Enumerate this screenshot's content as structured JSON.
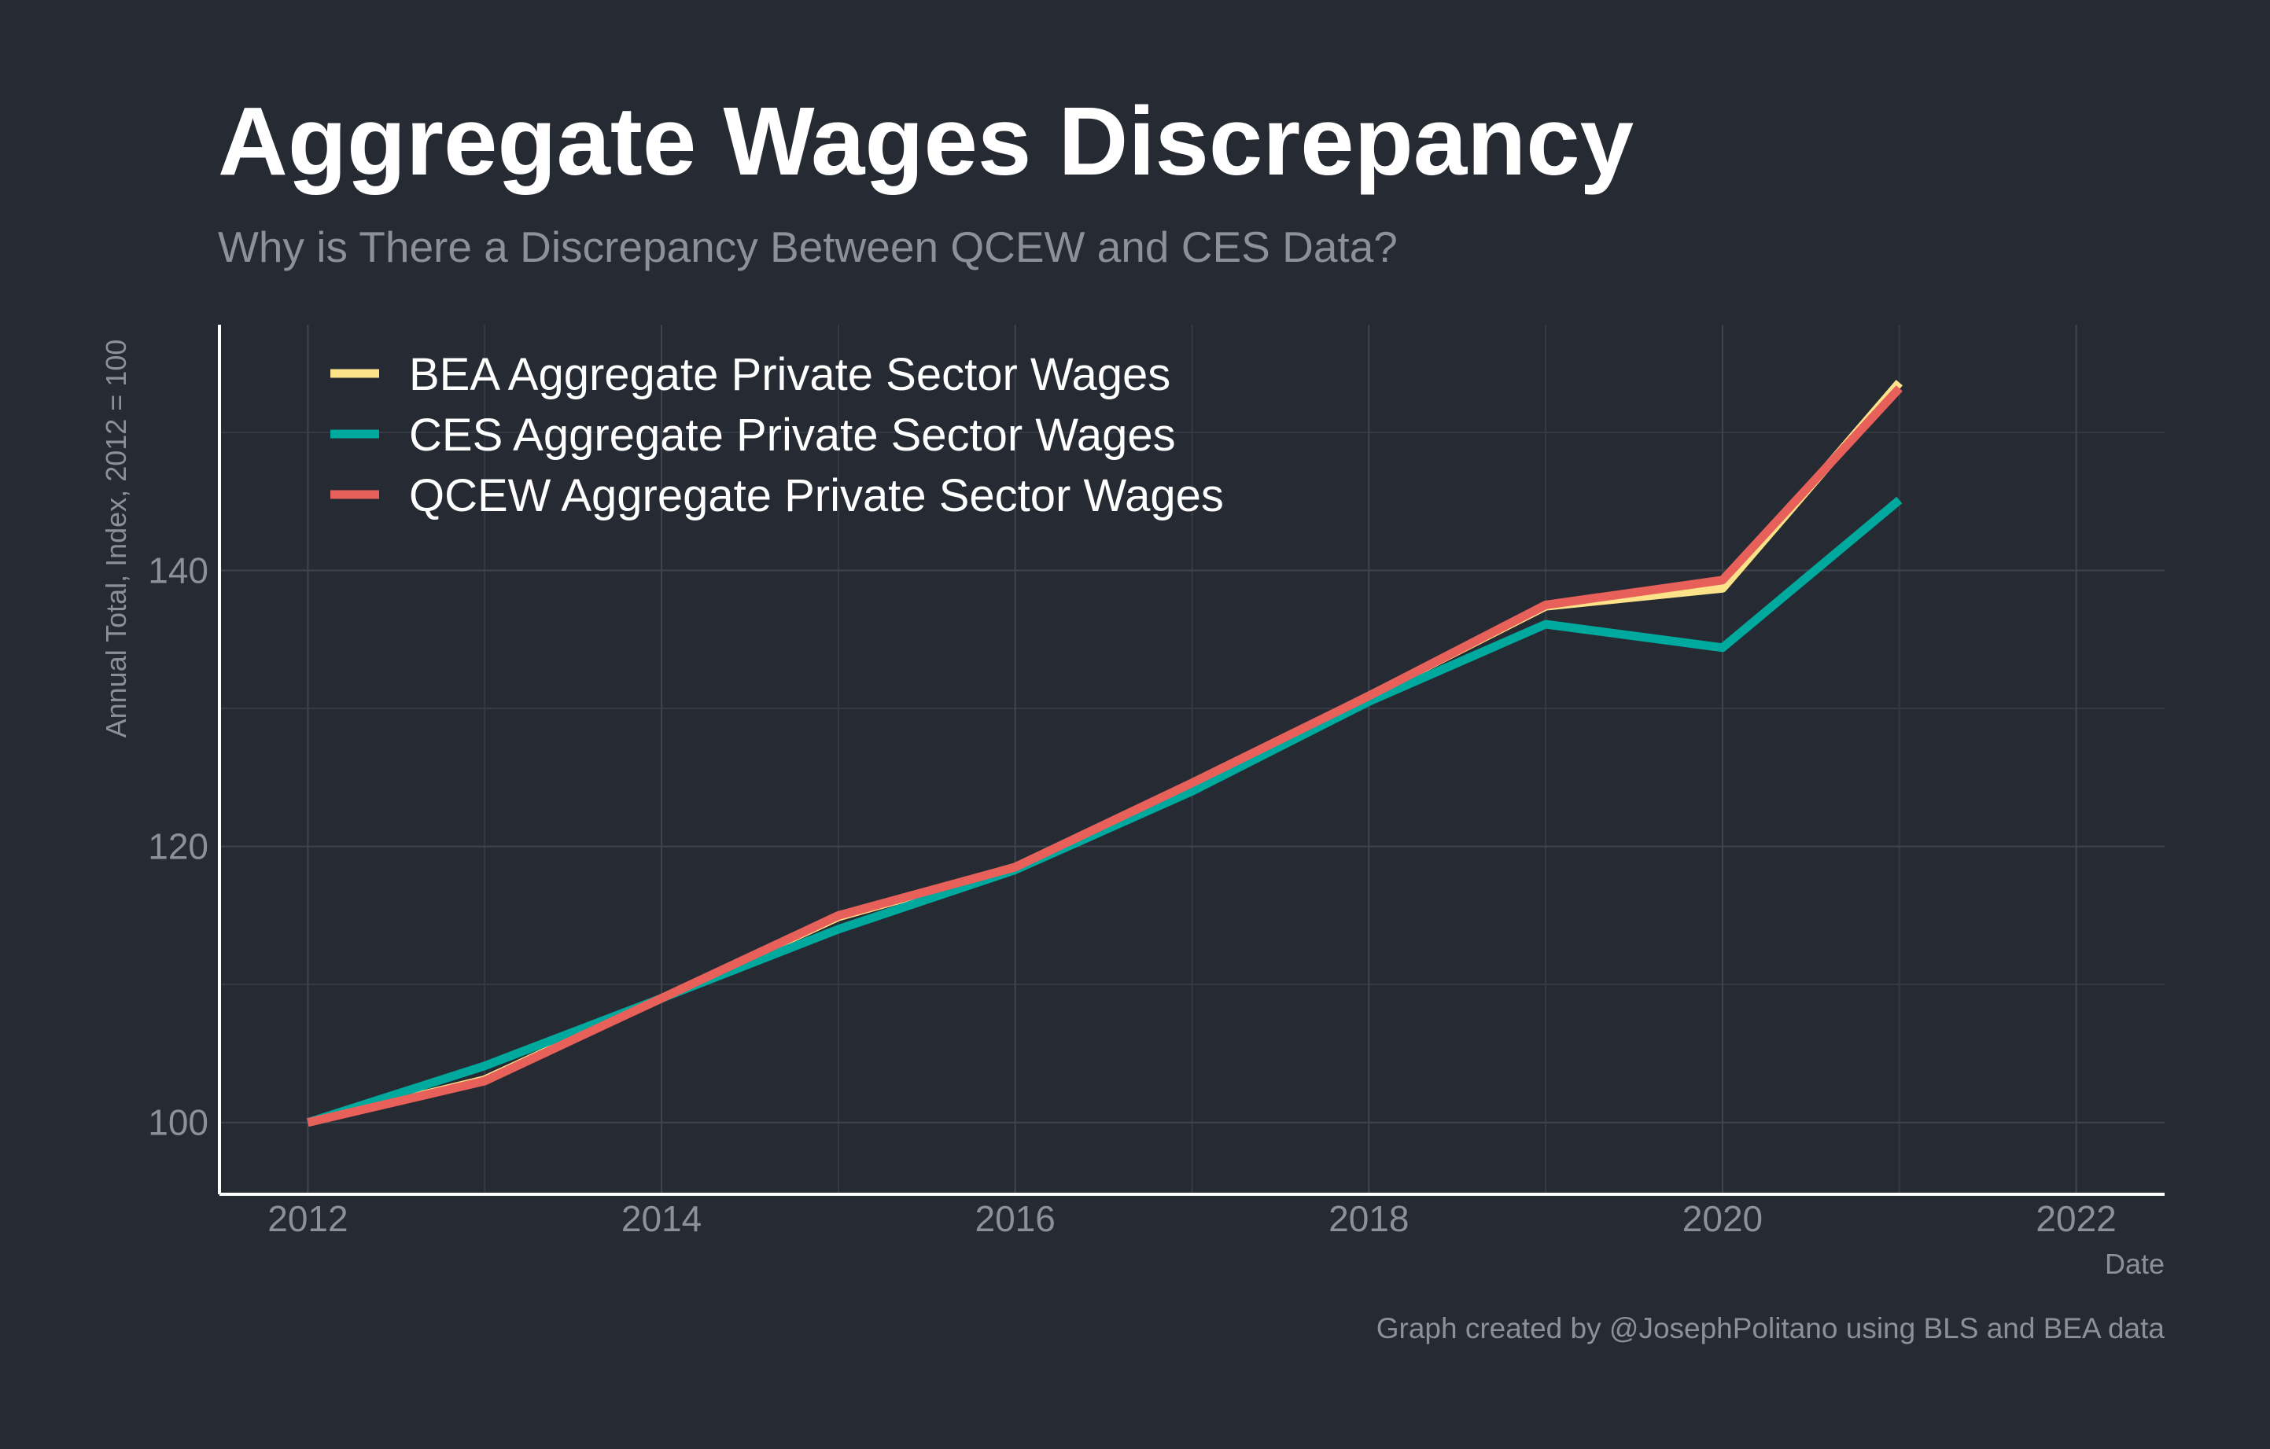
{
  "chart_data": {
    "type": "line",
    "title": "Aggregate Wages Discrepancy",
    "subtitle": "Why is There a Discrepancy Between QCEW and CES Data?",
    "ylabel": "Annual Total, Index, 2012 = 100",
    "xlabel": "Date",
    "caption": "Graph created by @JosephPolitano using BLS and BEA data",
    "xlim": [
      2011.5,
      2022.5
    ],
    "ylim": [
      94.8,
      157.8
    ],
    "x_ticks": [
      2012,
      2014,
      2016,
      2018,
      2020,
      2022
    ],
    "x_tick_labels": [
      "2012",
      "2014",
      "2016",
      "2018",
      "2020",
      "2022"
    ],
    "y_ticks": [
      100,
      120,
      140
    ],
    "y_tick_labels": [
      "100",
      "120",
      "140"
    ],
    "y_minor_gridlines": [
      110,
      130,
      150
    ],
    "x_minor_gridlines": [
      2013,
      2015,
      2017,
      2019,
      2021
    ],
    "grid": true,
    "legend_position": "top-left",
    "x": [
      2012,
      2013,
      2014,
      2015,
      2016,
      2017,
      2018,
      2019,
      2020,
      2021
    ],
    "series": [
      {
        "name": "BEA Aggregate Private Sector Wages",
        "color": "#fce38a",
        "values": [
          100.0,
          103.1,
          109.0,
          114.9,
          118.5,
          124.5,
          130.9,
          137.4,
          138.7,
          153.6
        ]
      },
      {
        "name": "CES Aggregate Private Sector Wages",
        "color": "#00a99d",
        "values": [
          100.0,
          104.1,
          109.0,
          114.0,
          118.3,
          124.0,
          130.5,
          136.1,
          134.4,
          145.1
        ]
      },
      {
        "name": "QCEW Aggregate Private Sector Wages",
        "color": "#e8605a",
        "values": [
          100.0,
          103.0,
          109.0,
          115.0,
          118.5,
          124.6,
          130.9,
          137.5,
          139.3,
          153.2
        ]
      }
    ]
  },
  "colors": {
    "background": "#252a33",
    "text_primary": "#ffffff",
    "text_secondary": "#8d9096"
  }
}
